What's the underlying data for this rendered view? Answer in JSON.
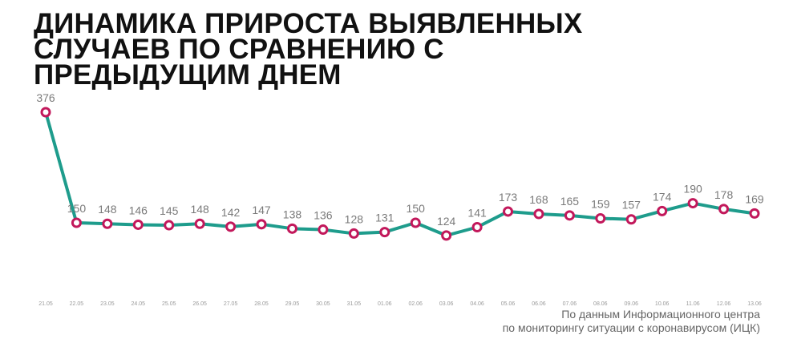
{
  "title_lines": [
    "ДИНАМИКА ПРИРОСТА ВЫЯВЛЕННЫХ",
    "СЛУЧАЕВ ПО СРАВНЕНИЮ С",
    "ПРЕДЫДУЩИМ ДНЕМ"
  ],
  "source_lines": [
    "По данным Информационного центра",
    "по мониторингу ситуации с коронавирусом (ИЦК)"
  ],
  "colors": {
    "line": "#1e9c8c",
    "marker": "#c2185b",
    "label": "#7a7a7a",
    "tick": "#9a9a9a"
  },
  "chart_data": {
    "type": "line",
    "title": "ДИНАМИКА ПРИРОСТА ВЫЯВЛЕННЫХ СЛУЧАЕВ ПО СРАВНЕНИЮ С ПРЕДЫДУЩИМ ДНЕМ",
    "xlabel": "",
    "ylabel": "",
    "categories": [
      "21.05",
      "22.05",
      "23.05",
      "24.05",
      "25.05",
      "26.05",
      "27.05",
      "28.05",
      "29.05",
      "30.05",
      "31.05",
      "01.06",
      "02.06",
      "03.06",
      "04.06",
      "05.06",
      "06.06",
      "07.06",
      "08.06",
      "09.06",
      "10.06",
      "11.06",
      "12.06",
      "13.06"
    ],
    "values": [
      376,
      150,
      148,
      146,
      145,
      148,
      142,
      147,
      138,
      136,
      128,
      131,
      150,
      124,
      141,
      173,
      168,
      165,
      159,
      157,
      174,
      190,
      178,
      169
    ],
    "data_labels": [
      "376",
      "150",
      "148",
      "146",
      "145",
      "148",
      "142",
      "147",
      "138",
      "136",
      "128",
      "131",
      "150",
      "124",
      "141",
      "173",
      "168",
      "165",
      "159",
      "157",
      "174",
      "190",
      "178",
      "169"
    ],
    "grid": false,
    "legend": "none"
  }
}
